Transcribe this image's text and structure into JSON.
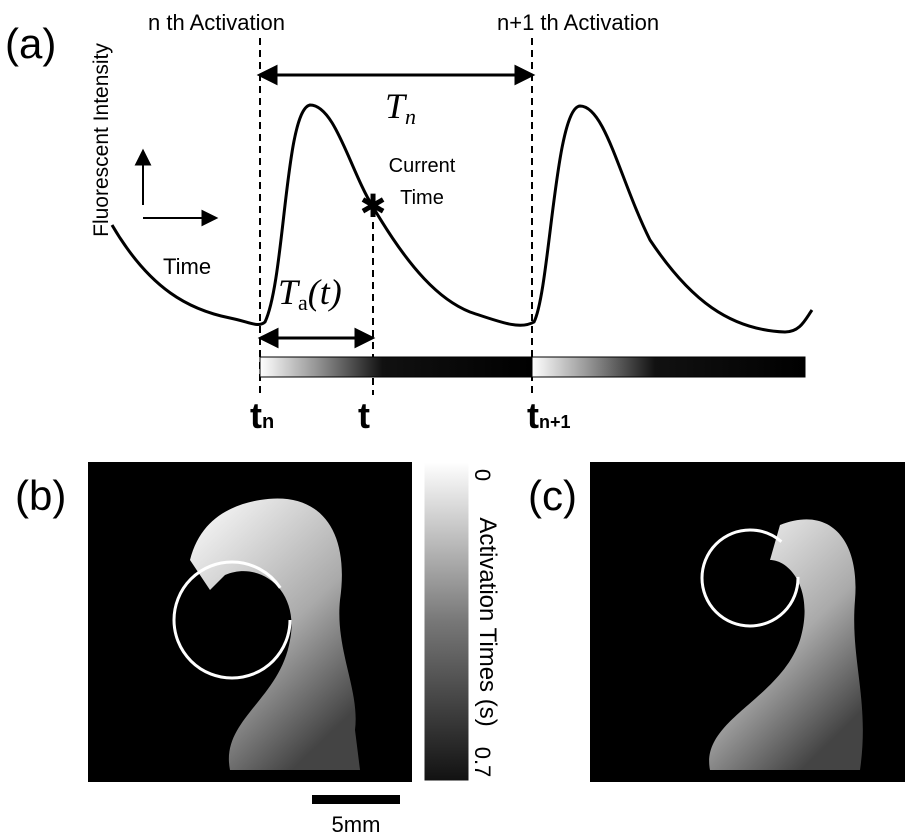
{
  "panel_a": {
    "label": "(a)",
    "activation_n": "n th Activation",
    "activation_n1": "n+1 th Activation",
    "period": {
      "symbol": "T",
      "sub": "n"
    },
    "y_axis": "Fluorescent Intensity",
    "x_axis": "Time",
    "current_time": {
      "line1": "Current",
      "line2": "Time"
    },
    "activation_time": {
      "symbol": "T",
      "sub": "a",
      "arg": "(t)"
    },
    "ticks": [
      {
        "symbol": "t",
        "sub": "n"
      },
      {
        "symbol": "t"
      },
      {
        "symbol": "t",
        "sub": "n+1"
      }
    ]
  },
  "panel_b": {
    "label": "(b)",
    "colorbar": {
      "title": "Activation Times (s)",
      "min": 0,
      "max": 0.7
    },
    "scale_bar": "5mm"
  },
  "panel_c": {
    "label": "(c)"
  }
}
